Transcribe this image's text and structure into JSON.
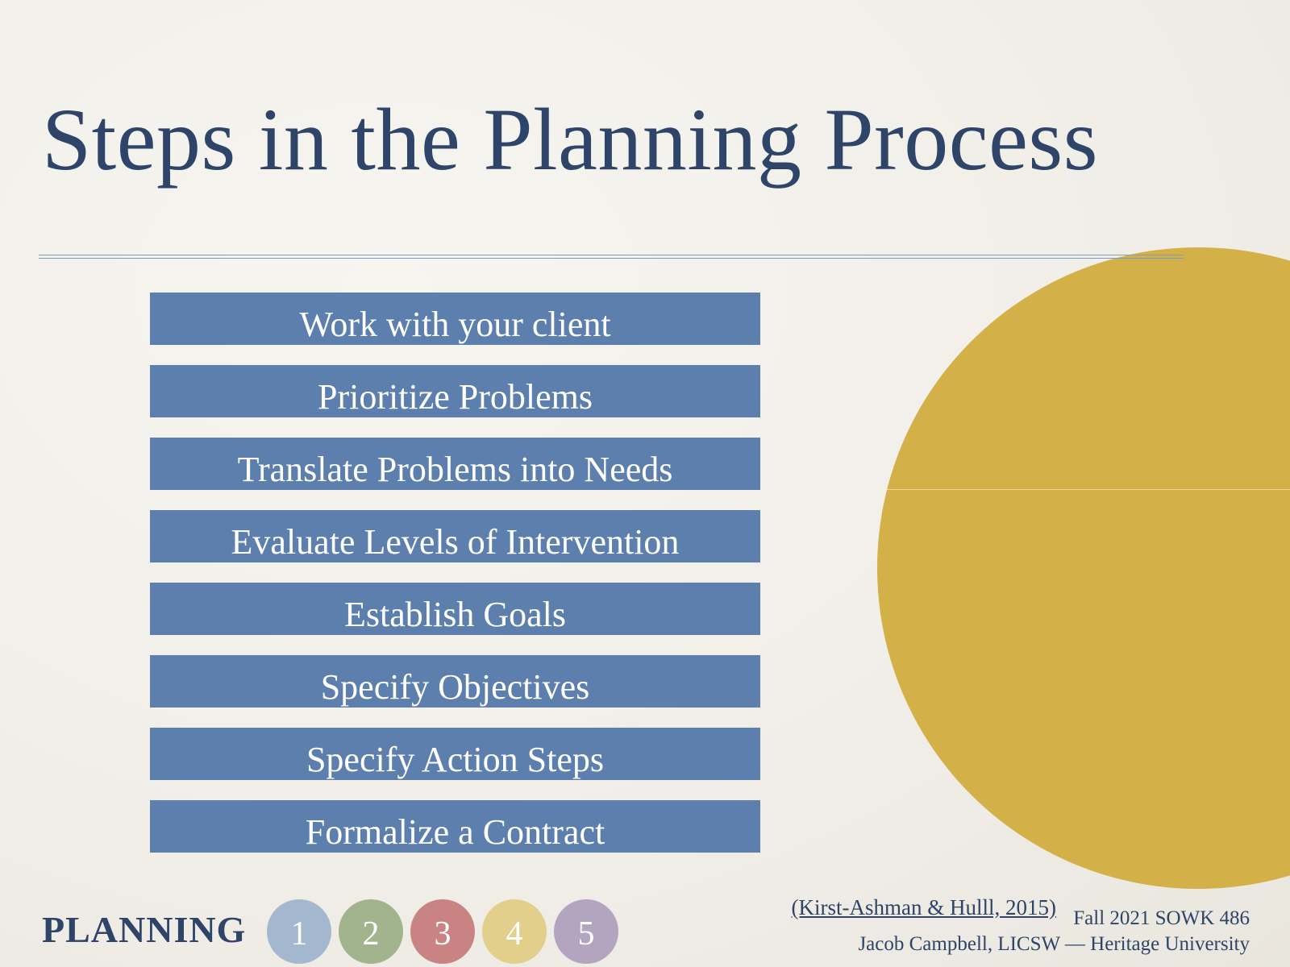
{
  "slide": {
    "title": "Steps in the Planning Process",
    "steps": [
      "Work with your client",
      "Prioritize Problems",
      "Translate Problems into Needs",
      "Evaluate Levels of Intervention",
      "Establish Goals",
      "Specify Objectives",
      "Specify Action Steps",
      "Formalize a Contract"
    ],
    "footer": {
      "section_label": "PLANNING",
      "numbers": [
        {
          "label": "1",
          "color": "#a3b7cf"
        },
        {
          "label": "2",
          "color": "#a2b48d"
        },
        {
          "label": "3",
          "color": "#c98383"
        },
        {
          "label": "4",
          "color": "#e2cf8c"
        },
        {
          "label": "5",
          "color": "#b3a4bf"
        }
      ],
      "citation": "(Kirst-Ashman & Hulll, 2015)",
      "course": "Fall 2021 SOWK 486",
      "author": "Jacob Campbell, LICSW — Heritage University"
    },
    "colors": {
      "title": "#2e4468",
      "step_bar": "#5d7fae",
      "accent_circle": "#d4b049"
    }
  }
}
